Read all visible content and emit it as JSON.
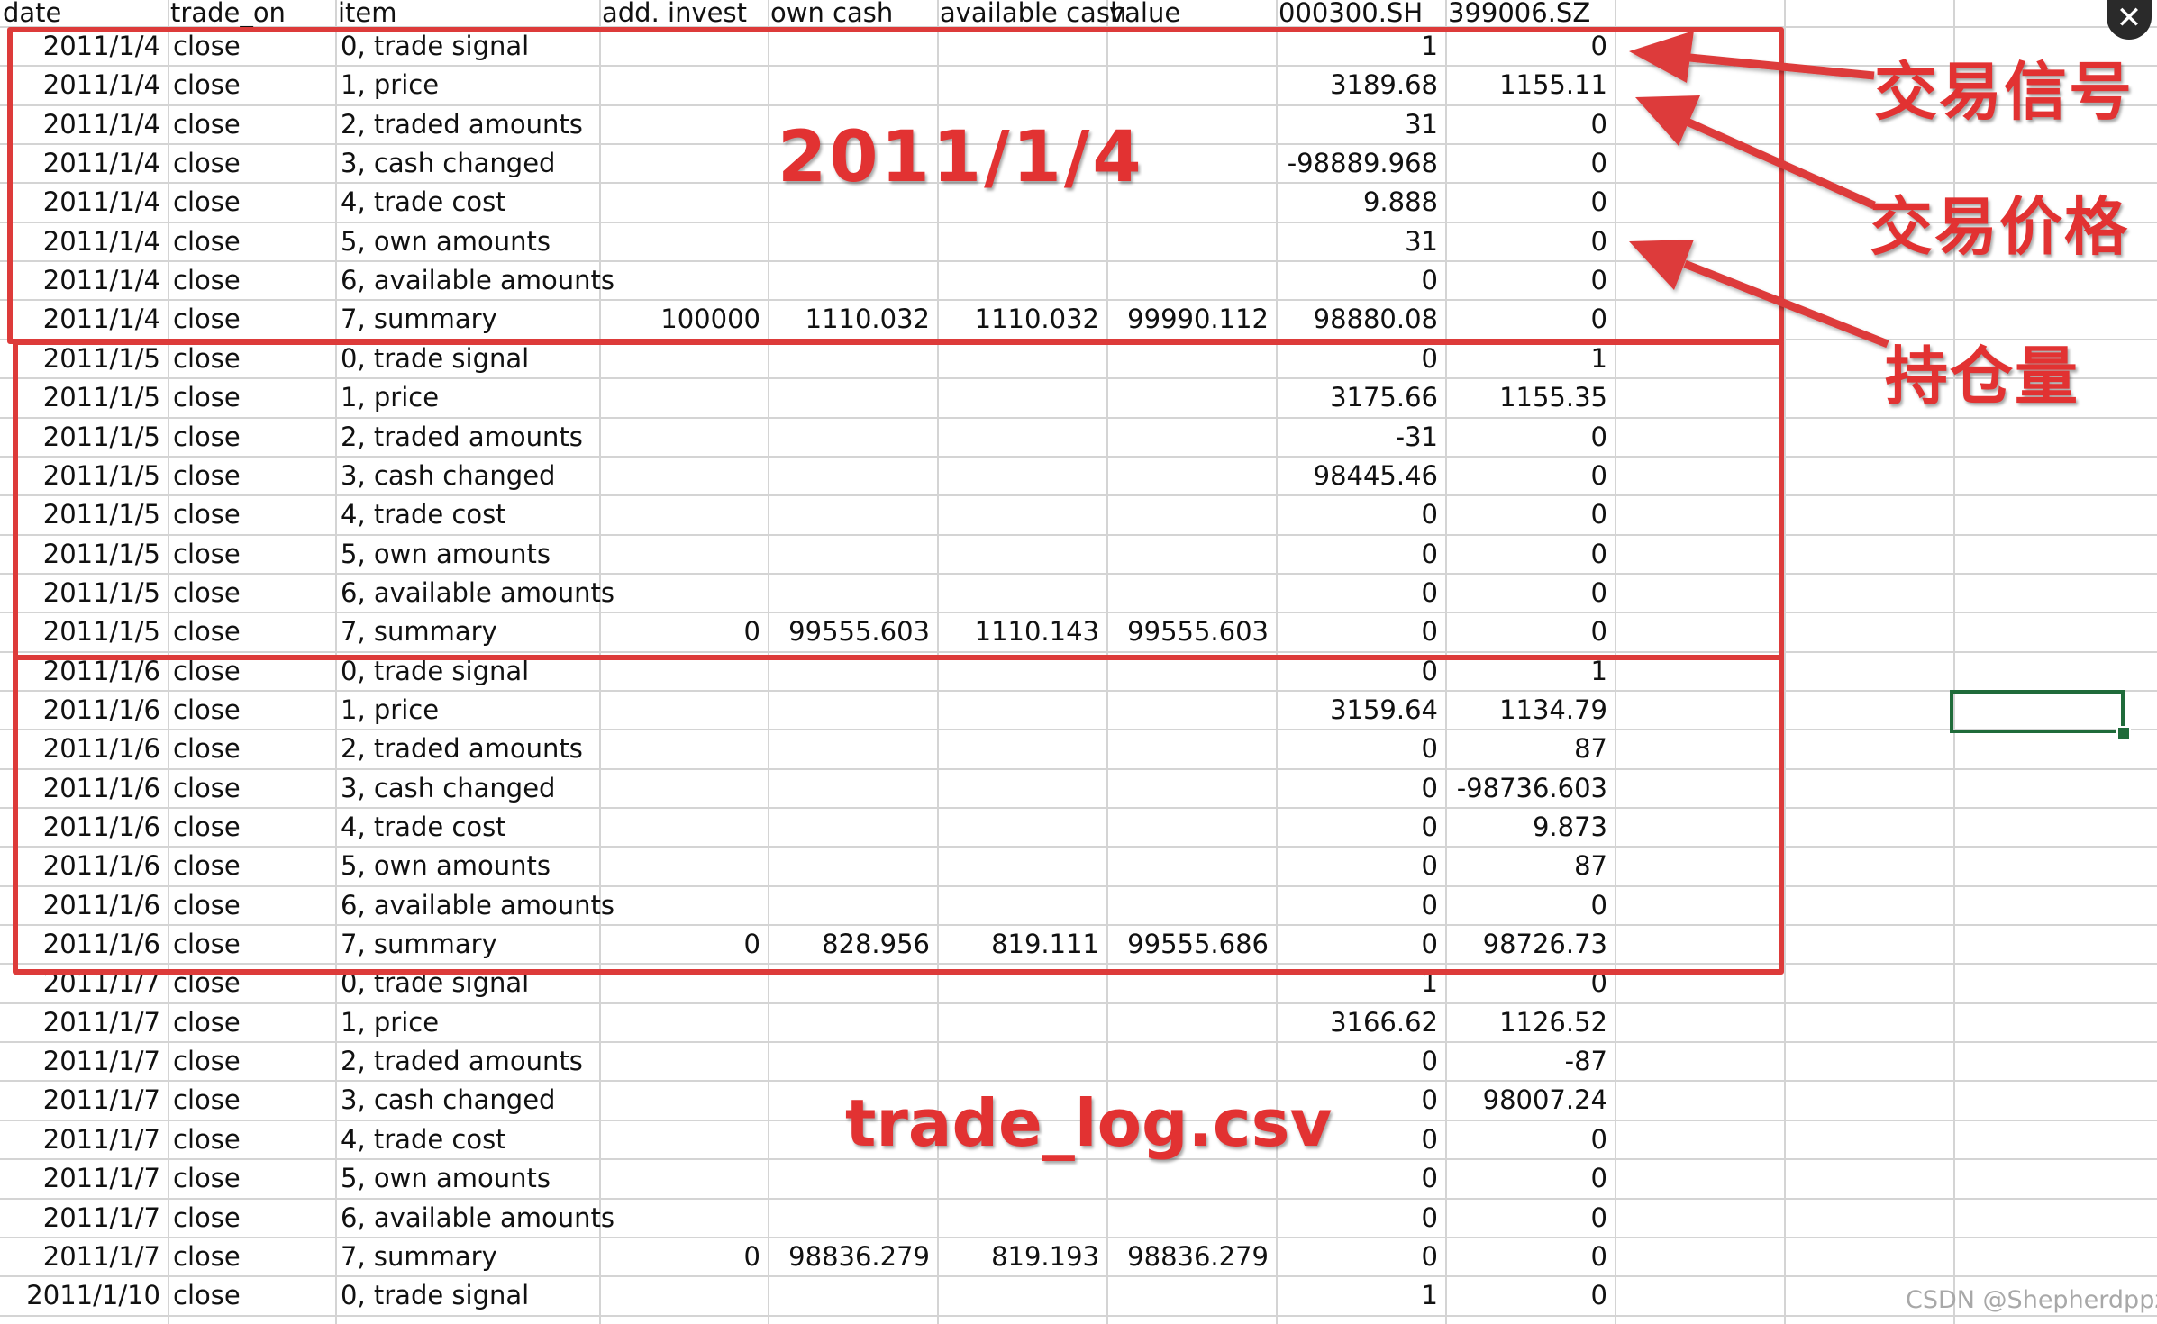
{
  "columns": [
    "date",
    "trade_on",
    "item",
    "add. invest",
    "own cash",
    "available cash",
    "value",
    "000300.SH",
    "399006.SZ"
  ],
  "rows": [
    [
      "2011/1/4",
      "close",
      "0, trade signal",
      "",
      "",
      "",
      "",
      "1",
      "0"
    ],
    [
      "2011/1/4",
      "close",
      "1, price",
      "",
      "",
      "",
      "",
      "3189.68",
      "1155.11"
    ],
    [
      "2011/1/4",
      "close",
      "2, traded amounts",
      "",
      "",
      "",
      "",
      "31",
      "0"
    ],
    [
      "2011/1/4",
      "close",
      "3, cash changed",
      "",
      "",
      "",
      "",
      "-98889.968",
      "0"
    ],
    [
      "2011/1/4",
      "close",
      "4, trade cost",
      "",
      "",
      "",
      "",
      "9.888",
      "0"
    ],
    [
      "2011/1/4",
      "close",
      "5, own amounts",
      "",
      "",
      "",
      "",
      "31",
      "0"
    ],
    [
      "2011/1/4",
      "close",
      "6, available amounts",
      "",
      "",
      "",
      "",
      "0",
      "0"
    ],
    [
      "2011/1/4",
      "close",
      "7, summary",
      "100000",
      "1110.032",
      "1110.032",
      "99990.112",
      "98880.08",
      "0"
    ],
    [
      "2011/1/5",
      "close",
      "0, trade signal",
      "",
      "",
      "",
      "",
      "0",
      "1"
    ],
    [
      "2011/1/5",
      "close",
      "1, price",
      "",
      "",
      "",
      "",
      "3175.66",
      "1155.35"
    ],
    [
      "2011/1/5",
      "close",
      "2, traded amounts",
      "",
      "",
      "",
      "",
      "-31",
      "0"
    ],
    [
      "2011/1/5",
      "close",
      "3, cash changed",
      "",
      "",
      "",
      "",
      "98445.46",
      "0"
    ],
    [
      "2011/1/5",
      "close",
      "4, trade cost",
      "",
      "",
      "",
      "",
      "0",
      "0"
    ],
    [
      "2011/1/5",
      "close",
      "5, own amounts",
      "",
      "",
      "",
      "",
      "0",
      "0"
    ],
    [
      "2011/1/5",
      "close",
      "6, available amounts",
      "",
      "",
      "",
      "",
      "0",
      "0"
    ],
    [
      "2011/1/5",
      "close",
      "7, summary",
      "0",
      "99555.603",
      "1110.143",
      "99555.603",
      "0",
      "0"
    ],
    [
      "2011/1/6",
      "close",
      "0, trade signal",
      "",
      "",
      "",
      "",
      "0",
      "1"
    ],
    [
      "2011/1/6",
      "close",
      "1, price",
      "",
      "",
      "",
      "",
      "3159.64",
      "1134.79"
    ],
    [
      "2011/1/6",
      "close",
      "2, traded amounts",
      "",
      "",
      "",
      "",
      "0",
      "87"
    ],
    [
      "2011/1/6",
      "close",
      "3, cash changed",
      "",
      "",
      "",
      "",
      "0",
      "-98736.603"
    ],
    [
      "2011/1/6",
      "close",
      "4, trade cost",
      "",
      "",
      "",
      "",
      "0",
      "9.873"
    ],
    [
      "2011/1/6",
      "close",
      "5, own amounts",
      "",
      "",
      "",
      "",
      "0",
      "87"
    ],
    [
      "2011/1/6",
      "close",
      "6, available amounts",
      "",
      "",
      "",
      "",
      "0",
      "0"
    ],
    [
      "2011/1/6",
      "close",
      "7, summary",
      "0",
      "828.956",
      "819.111",
      "99555.686",
      "0",
      "98726.73"
    ],
    [
      "2011/1/7",
      "close",
      "0, trade signal",
      "",
      "",
      "",
      "",
      "1",
      "0"
    ],
    [
      "2011/1/7",
      "close",
      "1, price",
      "",
      "",
      "",
      "",
      "3166.62",
      "1126.52"
    ],
    [
      "2011/1/7",
      "close",
      "2, traded amounts",
      "",
      "",
      "",
      "",
      "0",
      "-87"
    ],
    [
      "2011/1/7",
      "close",
      "3, cash changed",
      "",
      "",
      "",
      "",
      "0",
      "98007.24"
    ],
    [
      "2011/1/7",
      "close",
      "4, trade cost",
      "",
      "",
      "",
      "",
      "0",
      "0"
    ],
    [
      "2011/1/7",
      "close",
      "5, own amounts",
      "",
      "",
      "",
      "",
      "0",
      "0"
    ],
    [
      "2011/1/7",
      "close",
      "6, available amounts",
      "",
      "",
      "",
      "",
      "0",
      "0"
    ],
    [
      "2011/1/7",
      "close",
      "7, summary",
      "0",
      "98836.279",
      "819.193",
      "98836.279",
      "0",
      "0"
    ],
    [
      "2011/1/10",
      "close",
      "0, trade signal",
      "",
      "",
      "",
      "",
      "1",
      "0"
    ]
  ],
  "annotations": {
    "date_label": "2011/1/4",
    "file_label": "trade_log.csv",
    "trade_signal": "交易信号",
    "trade_price": "交易价格",
    "position": "持仓量"
  },
  "watermark": "CSDN @Shepherdppz",
  "close_icon": "close-icon",
  "colors": {
    "annotation_red": "#dd3b3a",
    "selection_green": "#1f6b3a",
    "gridline": "#d4d4d4"
  }
}
